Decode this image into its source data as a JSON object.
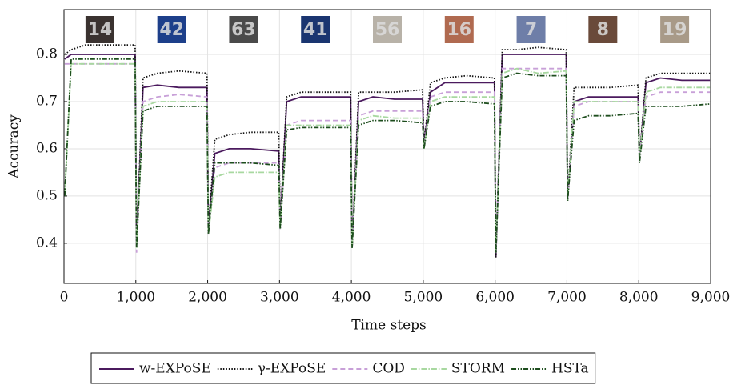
{
  "chart_data": {
    "type": "line",
    "x_label": "Time steps",
    "y_label": "Accuracy",
    "xlim": [
      0,
      9000
    ],
    "ylim": [
      0.315,
      0.895
    ],
    "xticks": [
      0,
      {
        "value": 1000,
        "label": "1,000"
      },
      {
        "value": 2000,
        "label": "2,000"
      },
      {
        "value": 3000,
        "label": "3,000"
      },
      {
        "value": 4000,
        "label": "4,000"
      },
      {
        "value": 5000,
        "label": "5,000"
      },
      {
        "value": 6000,
        "label": "6,000"
      },
      {
        "value": 7000,
        "label": "7,000"
      },
      {
        "value": 8000,
        "label": "8,000"
      },
      {
        "value": 9000,
        "label": "9,000"
      }
    ],
    "yticks": [
      0.4,
      0.5,
      0.6,
      0.7,
      0.8
    ],
    "grid": true,
    "legend": "bottom",
    "thumbnails": [
      {
        "label": "14",
        "color": "#3a3230"
      },
      {
        "label": "42",
        "color": "#1d3f8a"
      },
      {
        "label": "63",
        "color": "#4a4a4a"
      },
      {
        "label": "41",
        "color": "#1a3570"
      },
      {
        "label": "56",
        "color": "#b8b2a8"
      },
      {
        "label": "16",
        "color": "#b06a50"
      },
      {
        "label": "7",
        "color": "#6e7ea8"
      },
      {
        "label": "8",
        "color": "#6a4a3a"
      },
      {
        "label": "19",
        "color": "#a89a88"
      }
    ],
    "x": [
      10,
      100,
      300,
      600,
      990,
      1010,
      1100,
      1300,
      1600,
      1990,
      2010,
      2100,
      2300,
      2600,
      2990,
      3010,
      3100,
      3300,
      3600,
      3990,
      4010,
      4100,
      4300,
      4600,
      4990,
      5010,
      5100,
      5300,
      5600,
      5990,
      6010,
      6100,
      6300,
      6600,
      6990,
      7010,
      7100,
      7300,
      7600,
      7990,
      8010,
      8100,
      8300,
      8600,
      8990
    ],
    "series": [
      {
        "name": "w-EXPoSE",
        "color": "#4b1a5e",
        "dash": "",
        "values": [
          0.79,
          0.8,
          0.8,
          0.8,
          0.8,
          0.4,
          0.73,
          0.735,
          0.73,
          0.73,
          0.43,
          0.59,
          0.6,
          0.6,
          0.595,
          0.44,
          0.7,
          0.71,
          0.71,
          0.71,
          0.39,
          0.7,
          0.71,
          0.705,
          0.705,
          0.61,
          0.72,
          0.74,
          0.74,
          0.74,
          0.37,
          0.8,
          0.8,
          0.8,
          0.8,
          0.49,
          0.7,
          0.71,
          0.71,
          0.71,
          0.58,
          0.74,
          0.75,
          0.745,
          0.745
        ]
      },
      {
        "name": "γ-EXPoSE",
        "color": "#111111",
        "dash": "1.5 2",
        "values": [
          0.8,
          0.81,
          0.82,
          0.82,
          0.82,
          0.4,
          0.75,
          0.76,
          0.765,
          0.76,
          0.43,
          0.62,
          0.63,
          0.635,
          0.635,
          0.44,
          0.71,
          0.72,
          0.72,
          0.72,
          0.39,
          0.72,
          0.72,
          0.72,
          0.725,
          0.61,
          0.74,
          0.75,
          0.755,
          0.75,
          0.37,
          0.81,
          0.81,
          0.815,
          0.81,
          0.49,
          0.73,
          0.73,
          0.73,
          0.735,
          0.58,
          0.75,
          0.76,
          0.76,
          0.76
        ]
      },
      {
        "name": "COD",
        "color": "#c8a0d8",
        "dash": "6 4",
        "values": [
          0.78,
          0.78,
          0.78,
          0.78,
          0.78,
          0.38,
          0.7,
          0.71,
          0.715,
          0.71,
          0.42,
          0.56,
          0.57,
          0.57,
          0.57,
          0.43,
          0.65,
          0.66,
          0.66,
          0.66,
          0.39,
          0.67,
          0.68,
          0.68,
          0.68,
          0.6,
          0.71,
          0.72,
          0.72,
          0.72,
          0.38,
          0.77,
          0.77,
          0.77,
          0.77,
          0.49,
          0.69,
          0.7,
          0.7,
          0.7,
          0.58,
          0.71,
          0.72,
          0.72,
          0.72
        ]
      },
      {
        "name": "STORM",
        "color": "#a8d8a0",
        "dash": "7 2 1.5 2",
        "values": [
          0.5,
          0.78,
          0.78,
          0.78,
          0.78,
          0.39,
          0.69,
          0.7,
          0.7,
          0.7,
          0.42,
          0.54,
          0.55,
          0.55,
          0.55,
          0.43,
          0.65,
          0.65,
          0.65,
          0.65,
          0.39,
          0.66,
          0.67,
          0.665,
          0.665,
          0.6,
          0.7,
          0.71,
          0.71,
          0.71,
          0.38,
          0.76,
          0.77,
          0.76,
          0.765,
          0.49,
          0.7,
          0.7,
          0.7,
          0.7,
          0.58,
          0.72,
          0.73,
          0.73,
          0.73
        ]
      },
      {
        "name": "HSTa",
        "color": "#1d4d1d",
        "dash": "6 2 1.5 2 1.5 2",
        "values": [
          0.5,
          0.79,
          0.79,
          0.79,
          0.79,
          0.39,
          0.68,
          0.69,
          0.69,
          0.69,
          0.42,
          0.57,
          0.57,
          0.57,
          0.565,
          0.43,
          0.64,
          0.645,
          0.645,
          0.645,
          0.39,
          0.65,
          0.66,
          0.66,
          0.655,
          0.6,
          0.69,
          0.7,
          0.7,
          0.695,
          0.38,
          0.75,
          0.76,
          0.755,
          0.755,
          0.49,
          0.66,
          0.67,
          0.67,
          0.675,
          0.57,
          0.69,
          0.69,
          0.69,
          0.695
        ]
      }
    ]
  }
}
